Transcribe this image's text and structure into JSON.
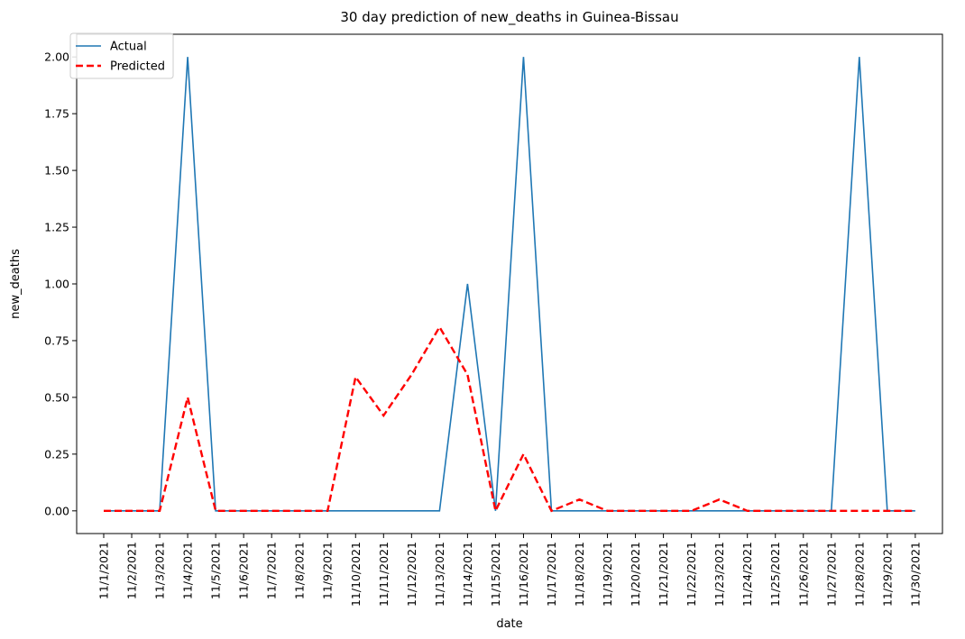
{
  "chart_data": {
    "type": "line",
    "title": "30 day prediction of new_deaths in Guinea-Bissau",
    "xlabel": "date",
    "ylabel": "new_deaths",
    "categories": [
      "11/1/2021",
      "11/2/2021",
      "11/3/2021",
      "11/4/2021",
      "11/5/2021",
      "11/6/2021",
      "11/7/2021",
      "11/8/2021",
      "11/9/2021",
      "11/10/2021",
      "11/11/2021",
      "11/12/2021",
      "11/13/2021",
      "11/14/2021",
      "11/15/2021",
      "11/16/2021",
      "11/17/2021",
      "11/18/2021",
      "11/19/2021",
      "11/20/2021",
      "11/21/2021",
      "11/22/2021",
      "11/23/2021",
      "11/24/2021",
      "11/25/2021",
      "11/26/2021",
      "11/27/2021",
      "11/28/2021",
      "11/29/2021",
      "11/30/2021"
    ],
    "ylim": [
      -0.1,
      2.1
    ],
    "yticks": [
      "0.00",
      "0.25",
      "0.50",
      "0.75",
      "1.00",
      "1.25",
      "1.50",
      "1.75",
      "2.00"
    ],
    "legend": "top-left",
    "grid": false,
    "series": [
      {
        "name": "Actual",
        "color": "#1f77b4",
        "style": "solid",
        "values": [
          0,
          0,
          0,
          2,
          0,
          0,
          0,
          0,
          0,
          0,
          0,
          0,
          0,
          1,
          0,
          2,
          0,
          0,
          0,
          0,
          0,
          0,
          0,
          0,
          0,
          0,
          0,
          2,
          0,
          0
        ]
      },
      {
        "name": "Predicted",
        "color": "#ff0000",
        "style": "dashed",
        "values": [
          0,
          0,
          0,
          0.5,
          0,
          0,
          0,
          0,
          0,
          0.59,
          0.42,
          0.6,
          0.81,
          0.6,
          0,
          0.25,
          0,
          0.05,
          0,
          0,
          0,
          0,
          0.05,
          0,
          0,
          0,
          0,
          0,
          0,
          0
        ]
      }
    ]
  }
}
